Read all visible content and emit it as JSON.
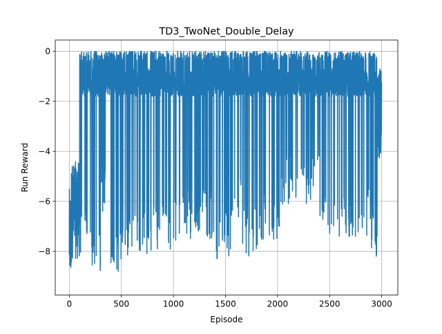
{
  "chart_data": {
    "type": "line",
    "title": "TD3_TwoNet_Double_Delay",
    "xlabel": "Episode",
    "ylabel": "Run Reward",
    "xlim": [
      -135,
      3155
    ],
    "ylim": [
      -9.75,
      0.45
    ],
    "xticks": [
      0,
      500,
      1000,
      1500,
      2000,
      2500,
      3000
    ],
    "xtick_labels": [
      "0",
      "500",
      "1000",
      "1500",
      "2000",
      "2500",
      "3000"
    ],
    "yticks": [
      0,
      -2,
      -4,
      -6,
      -8
    ],
    "ytick_labels": [
      "0",
      "−2",
      "−4",
      "−6",
      "−8"
    ],
    "grid": true,
    "series": [
      {
        "color": "#1f77b4",
        "n_episodes": 3000,
        "segments": [
          {
            "x0": 0,
            "x1": 20,
            "lo": -9.3,
            "hi": -5.5
          },
          {
            "x0": 20,
            "x1": 100,
            "lo": -8.3,
            "hi": -4.4
          },
          {
            "x0": 100,
            "x1": 200,
            "lo": -8.1,
            "hi": 0
          },
          {
            "x0": 200,
            "x1": 300,
            "lo": -8.8,
            "hi": 0
          },
          {
            "x0": 300,
            "x1": 400,
            "lo": -6.5,
            "hi": 0
          },
          {
            "x0": 400,
            "x1": 500,
            "lo": -9.0,
            "hi": 0
          },
          {
            "x0": 500,
            "x1": 700,
            "lo": -8.3,
            "hi": 0
          },
          {
            "x0": 700,
            "x1": 1000,
            "lo": -8.1,
            "hi": 0
          },
          {
            "x0": 1000,
            "x1": 1100,
            "lo": -7.7,
            "hi": 0
          },
          {
            "x0": 1100,
            "x1": 1400,
            "lo": -7.5,
            "hi": 0
          },
          {
            "x0": 1400,
            "x1": 1550,
            "lo": -8.3,
            "hi": 0
          },
          {
            "x0": 1550,
            "x1": 1650,
            "lo": -7.0,
            "hi": 0
          },
          {
            "x0": 1650,
            "x1": 1850,
            "lo": -8.3,
            "hi": 0
          },
          {
            "x0": 1850,
            "x1": 2030,
            "lo": -7.6,
            "hi": 0
          },
          {
            "x0": 2030,
            "x1": 2200,
            "lo": -6.2,
            "hi": 0
          },
          {
            "x0": 2200,
            "x1": 2400,
            "lo": -6.1,
            "hi": 0
          },
          {
            "x0": 2400,
            "x1": 2900,
            "lo": -7.5,
            "hi": 0
          },
          {
            "x0": 2900,
            "x1": 2960,
            "lo": -8.3,
            "hi": 0
          },
          {
            "x0": 2960,
            "x1": 3000,
            "lo": -4.3,
            "hi": -0.6
          }
        ]
      }
    ]
  }
}
